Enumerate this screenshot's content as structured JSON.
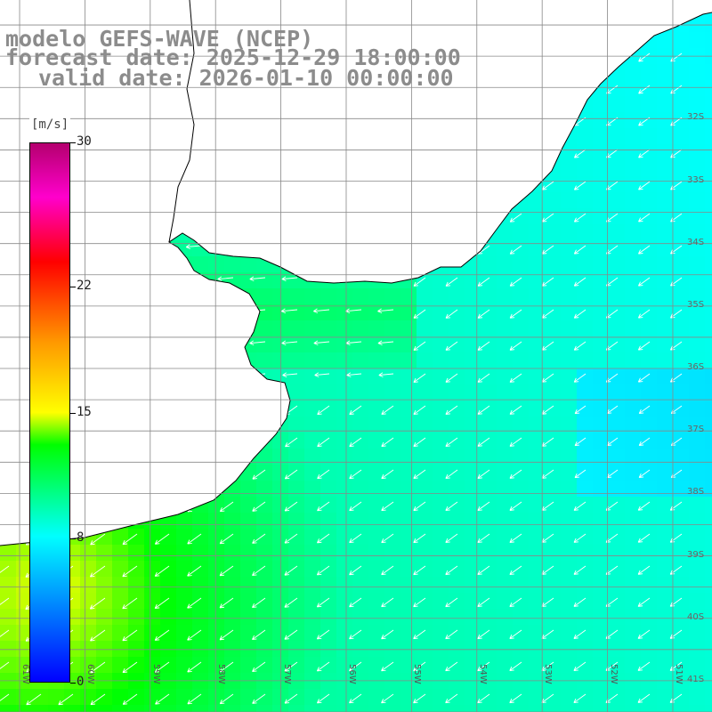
{
  "title": {
    "line1": "modelo GEFS-WAVE (NCEP)",
    "line2": "forecast date: 2025-12-29 18:00:00",
    "line3": "valid date: 2026-01-10 00:00:00"
  },
  "colorbar": {
    "units": "[m/s]",
    "min": 0,
    "max": 30,
    "ticks": [
      "30",
      "22",
      "15",
      "8",
      "0"
    ],
    "stops": [
      {
        "value": 0,
        "color": "#0000ff"
      },
      {
        "value": 8,
        "color": "#00ffff"
      },
      {
        "value": 13,
        "color": "#00ff00"
      },
      {
        "value": 15,
        "color": "#ffff00"
      },
      {
        "value": 19,
        "color": "#ff9900"
      },
      {
        "value": 23,
        "color": "#ff0000"
      },
      {
        "value": 27,
        "color": "#ff00cc"
      },
      {
        "value": 30,
        "color": "#b4006e"
      }
    ]
  },
  "map": {
    "lon_range": [
      -61.3,
      -50.4
    ],
    "lat_range": [
      -41.5,
      -30.1
    ],
    "lon_ticks": [
      "61W",
      "60W",
      "59W",
      "58W",
      "57W",
      "56W",
      "55W",
      "54W",
      "53W",
      "52W",
      "51W"
    ],
    "lat_ticks": [
      "32S",
      "33S",
      "34S",
      "35S",
      "36S",
      "37S",
      "38S",
      "39S",
      "40S",
      "41S"
    ],
    "land_color": "#ffffff",
    "grid_color": "#888888",
    "arrow_color": "#ffffff",
    "field_description_hidden": false
  }
}
